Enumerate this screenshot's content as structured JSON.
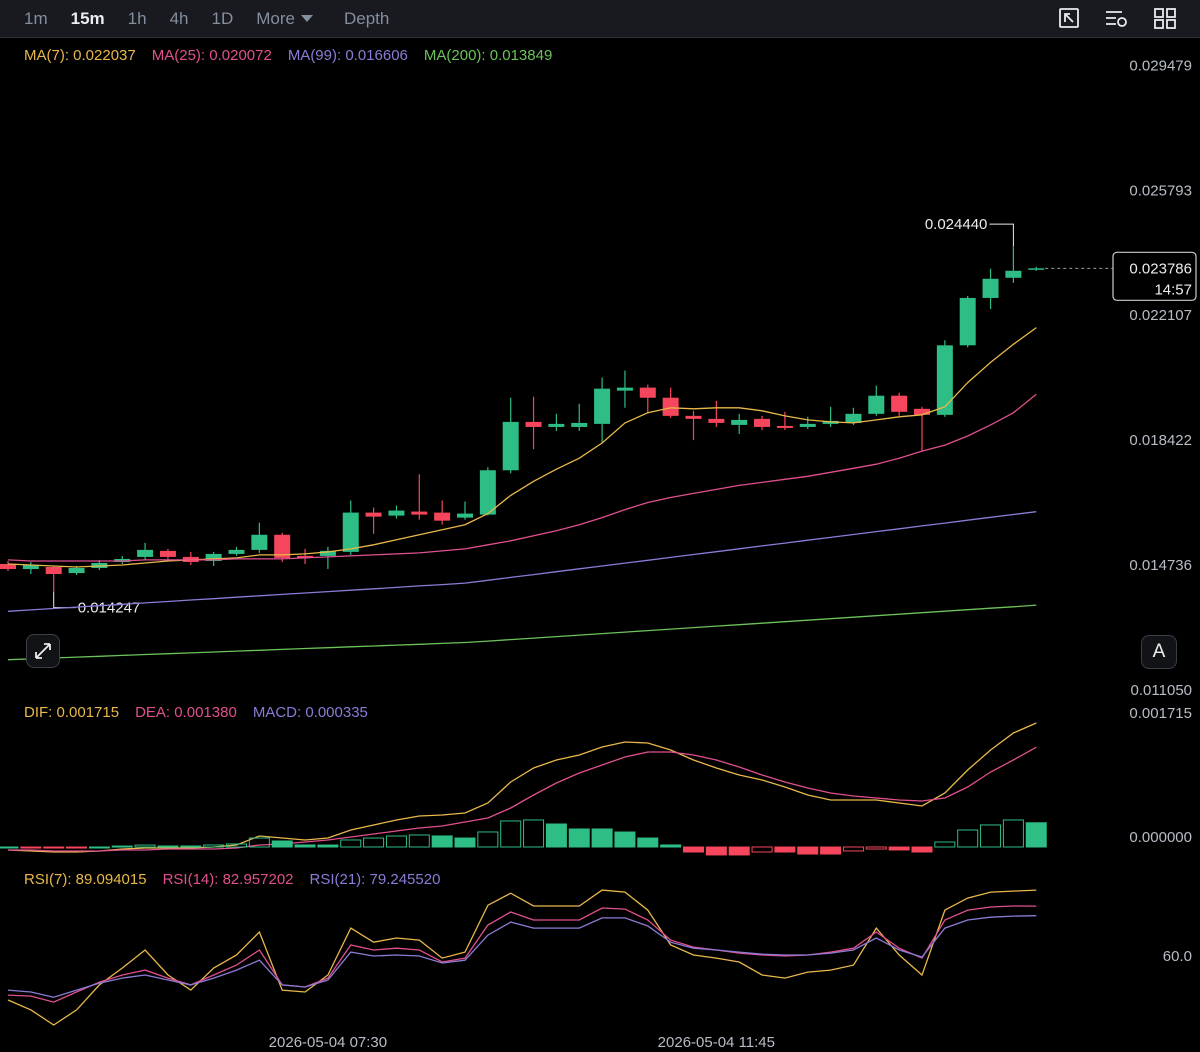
{
  "toolbar": {
    "tabs": [
      {
        "label": "1m"
      },
      {
        "label": "15m",
        "active": true
      },
      {
        "label": "1h"
      },
      {
        "label": "4h"
      },
      {
        "label": "1D"
      },
      {
        "label": "More"
      }
    ],
    "depth": "Depth"
  },
  "auto_button": "A",
  "chart_data": [
    {
      "type": "candlestick",
      "categories": [
        null,
        null,
        null,
        null,
        null,
        null,
        null,
        null,
        null,
        null,
        null,
        null,
        null,
        null,
        "2026-05-04 07:30",
        null,
        null,
        null,
        null,
        null,
        null,
        null,
        null,
        null,
        null,
        null,
        null,
        null,
        null,
        null,
        null,
        "2026-05-04 11:45",
        null,
        null,
        null,
        null,
        null,
        null,
        null,
        null,
        null,
        null,
        null,
        null,
        null,
        null
      ],
      "open": [
        0.015063,
        0.014914,
        0.014974,
        0.014795,
        0.014944,
        0.015122,
        0.015271,
        0.01545,
        0.015271,
        0.015152,
        0.01536,
        0.015479,
        0.015925,
        0.015301,
        0.015301,
        0.01542,
        0.016579,
        0.01649,
        0.016609,
        0.016579,
        0.016431,
        0.01652,
        0.017828,
        0.019255,
        0.019106,
        0.019106,
        0.019196,
        0.020177,
        0.020266,
        0.019968,
        0.019433,
        0.019344,
        0.019166,
        0.019344,
        0.019136,
        0.019106,
        0.019196,
        0.019225,
        0.019493,
        0.020028,
        0.019641,
        0.019463,
        0.021514,
        0.022912,
        0.023506,
        0.023744
      ],
      "high": [
        0.015152,
        0.015122,
        0.015004,
        0.015004,
        0.015182,
        0.015301,
        0.015687,
        0.015509,
        0.01542,
        0.01542,
        0.015568,
        0.016282,
        0.015985,
        0.015509,
        0.015568,
        0.016936,
        0.016728,
        0.016787,
        0.017709,
        0.016936,
        0.016906,
        0.017917,
        0.019968,
        0.019998,
        0.019493,
        0.01979,
        0.020563,
        0.020771,
        0.020355,
        0.020266,
        0.019582,
        0.019879,
        0.019493,
        0.019433,
        0.019552,
        0.019404,
        0.019701,
        0.019671,
        0.020325,
        0.020117,
        0.019701,
        0.021663,
        0.022971,
        0.023774,
        0.02444,
        0.023833
      ],
      "low": [
        0.014855,
        0.014766,
        0.014247,
        0.014736,
        0.014885,
        0.015063,
        0.015182,
        0.015182,
        0.015033,
        0.015004,
        0.015301,
        0.01539,
        0.015122,
        0.015063,
        0.014914,
        0.015331,
        0.015955,
        0.016401,
        0.016371,
        0.016223,
        0.016371,
        0.01649,
        0.017739,
        0.018452,
        0.018987,
        0.018987,
        0.018631,
        0.019671,
        0.019523,
        0.019374,
        0.01872,
        0.019106,
        0.018898,
        0.019017,
        0.019017,
        0.019047,
        0.019106,
        0.019166,
        0.019433,
        0.019433,
        0.018393,
        0.019404,
        0.021455,
        0.022585,
        0.023358,
        0.023714
      ],
      "close": [
        0.014914,
        0.015033,
        0.014766,
        0.014944,
        0.015093,
        0.015212,
        0.015479,
        0.015271,
        0.015122,
        0.01536,
        0.015479,
        0.015925,
        0.015241,
        0.015241,
        0.01545,
        0.016579,
        0.01646,
        0.016639,
        0.01652,
        0.016341,
        0.01655,
        0.017828,
        0.019255,
        0.019106,
        0.019196,
        0.019225,
        0.020236,
        0.020266,
        0.019968,
        0.019433,
        0.019344,
        0.019225,
        0.019314,
        0.019106,
        0.019077,
        0.019196,
        0.019285,
        0.019493,
        0.020028,
        0.019552,
        0.019463,
        0.021514,
        0.022912,
        0.023477,
        0.023714,
        0.023786
      ],
      "up_color": "#2ebd85",
      "down_color": "#f6465d",
      "series": [
        {
          "name": "MA(7): 0.022037",
          "color": "#e8b84a",
          "values": [
            0.015063,
            0.015033,
            0.015004,
            0.014974,
            0.015004,
            0.015033,
            0.015093,
            0.015152,
            0.015182,
            0.015212,
            0.015241,
            0.015331,
            0.015331,
            0.01536,
            0.01542,
            0.015509,
            0.015628,
            0.015777,
            0.015925,
            0.016074,
            0.016223,
            0.01655,
            0.017085,
            0.017501,
            0.017858,
            0.018185,
            0.018631,
            0.019225,
            0.019523,
            0.019671,
            0.019641,
            0.019671,
            0.019671,
            0.019582,
            0.019433,
            0.019314,
            0.019255,
            0.019225,
            0.019314,
            0.019404,
            0.019463,
            0.019701,
            0.020414,
            0.021009,
            0.021544,
            0.022037
          ]
        },
        {
          "name": "MA(25): 0.020072",
          "color": "#e0508f",
          "values": [
            0.015182,
            0.015152,
            0.015152,
            0.015152,
            0.015152,
            0.015152,
            0.015182,
            0.015182,
            0.015182,
            0.015182,
            0.015212,
            0.015212,
            0.015212,
            0.015241,
            0.015271,
            0.015301,
            0.015331,
            0.01536,
            0.01539,
            0.01545,
            0.015509,
            0.015628,
            0.015747,
            0.015895,
            0.016044,
            0.016223,
            0.016431,
            0.016668,
            0.016877,
            0.017025,
            0.017144,
            0.017263,
            0.017382,
            0.017471,
            0.01756,
            0.01765,
            0.017768,
            0.017887,
            0.018006,
            0.018185,
            0.018393,
            0.018571,
            0.018839,
            0.019166,
            0.019523,
            0.020072
          ]
        },
        {
          "name": "MA(99): 0.016606",
          "color": "#8c7bd6",
          "values": [
            0.013666,
            0.013708,
            0.013749,
            0.013791,
            0.013832,
            0.013874,
            0.013916,
            0.013957,
            0.013999,
            0.01404,
            0.014082,
            0.014124,
            0.014165,
            0.014207,
            0.014248,
            0.01429,
            0.014332,
            0.014373,
            0.014415,
            0.014456,
            0.014498,
            0.014582,
            0.014667,
            0.014751,
            0.014836,
            0.01492,
            0.015004,
            0.015089,
            0.015173,
            0.015258,
            0.015342,
            0.015426,
            0.015511,
            0.015595,
            0.01568,
            0.015764,
            0.015848,
            0.015933,
            0.016017,
            0.016102,
            0.016186,
            0.01627,
            0.016355,
            0.016439,
            0.016524,
            0.016606
          ]
        },
        {
          "name": "MA(200): 0.013849",
          "color": "#6cc35a",
          "values": [
            0.012239,
            0.012264,
            0.01229,
            0.012315,
            0.01234,
            0.012366,
            0.012391,
            0.012416,
            0.012441,
            0.012467,
            0.012492,
            0.012517,
            0.012543,
            0.012568,
            0.012593,
            0.012619,
            0.012644,
            0.012669,
            0.012694,
            0.01272,
            0.012745,
            0.012789,
            0.012833,
            0.012877,
            0.012921,
            0.012965,
            0.013009,
            0.013053,
            0.013097,
            0.013141,
            0.013185,
            0.013229,
            0.013273,
            0.013317,
            0.013361,
            0.013405,
            0.013449,
            0.013493,
            0.013537,
            0.013581,
            0.013625,
            0.013669,
            0.013713,
            0.013757,
            0.013801,
            0.013849
          ]
        }
      ],
      "ylim": [
        0.01105,
        0.030463
      ],
      "yticks": [
        0.029479,
        0.025793,
        0.022107,
        0.018422,
        0.014736,
        {
          "value": 0.01105,
          "label": "0.011050"
        }
      ],
      "high_label": {
        "value": 0.02444,
        "label": "0.024440"
      },
      "low_label": 0.014247,
      "last_price": 0.023786,
      "countdown": "14:57"
    },
    {
      "type": "macd",
      "up_color": "#2ebd85",
      "down_color": "#f6465d",
      "series": [
        {
          "name": "DIF: 0.001715",
          "color": "#e8b84a",
          "values": [
            -4.1e-05,
            -5.5e-05,
            -6.9e-05,
            -6.9e-05,
            -5.5e-05,
            -2.8e-05,
            -1.4e-05,
            -1.4e-05,
            -1.4e-05,
            0,
            2.8e-05,
            0.000152,
            0.000124,
            9.7e-05,
            0.000124,
            0.000235,
            0.000304,
            0.000373,
            0.000429,
            0.000443,
            0.00047,
            0.000609,
            0.000899,
            0.001093,
            0.001203,
            0.001272,
            0.001383,
            0.001452,
            0.001438,
            0.001342,
            0.001203,
            0.001093,
            0.000996,
            0.000927,
            0.00083,
            0.000719,
            0.00065,
            0.00065,
            0.00065,
            0.000609,
            0.000567,
            0.000747,
            0.001065,
            0.001342,
            0.001577,
            0.001715
          ]
        },
        {
          "name": "DEA: 0.001380",
          "color": "#e0508f",
          "values": [
            -4.1e-05,
            -4.1e-05,
            -5.5e-05,
            -5.5e-05,
            -5.5e-05,
            -4.1e-05,
            -4.1e-05,
            -2.8e-05,
            -2.8e-05,
            -2.8e-05,
            -1.4e-05,
            2.8e-05,
            4.1e-05,
            6.9e-05,
            9.7e-05,
            0.000138,
            0.00018,
            0.000221,
            0.000263,
            0.00029,
            0.000346,
            0.000401,
            0.000539,
            0.000719,
            0.000885,
            0.001023,
            0.001134,
            0.001245,
            0.001314,
            0.001314,
            0.001272,
            0.001203,
            0.001106,
            0.000996,
            0.000899,
            0.000816,
            0.000747,
            0.000705,
            0.000678,
            0.00065,
            0.000636,
            0.000678,
            0.00083,
            0.001037,
            0.001203,
            0.00138
          ]
        },
        {
          "name": "MACD: 0.000335",
          "color": "#8c7bd6",
          "type": "bar",
          "values": [
            0,
            -1.4e-05,
            -1.4e-05,
            -1.4e-05,
            0,
            1.3e-05,
            2.7e-05,
            1.4e-05,
            1.4e-05,
            2.8e-05,
            4.2e-05,
            0.000124,
            8.3e-05,
            2.8e-05,
            2.7e-05,
            9.7e-05,
            0.000124,
            0.000152,
            0.000166,
            0.000153,
            0.000124,
            0.000208,
            0.00036,
            0.000374,
            0.000318,
            0.000249,
            0.000249,
            0.000207,
            0.000124,
            2.8e-05,
            -6.9e-05,
            -0.00011,
            -0.00011,
            -6.9e-05,
            -6.9e-05,
            -9.7e-05,
            -9.7e-05,
            -5.5e-05,
            -2.8e-05,
            -4.1e-05,
            -6.9e-05,
            6.9e-05,
            0.000235,
            0.000305,
            0.000374,
            0.000335
          ]
        }
      ],
      "ylim": [
        -0.000249,
        0.001964
      ],
      "yticks": [
        0.001715,
        {
          "value": 0,
          "label": "0.000000"
        }
      ]
    },
    {
      "type": "line",
      "series": [
        {
          "name": "RSI(7): 89.094015",
          "color": "#e8b84a",
          "values": [
            46.9,
            43.1,
            37.3,
            43.1,
            52.7,
            59.2,
            66.1,
            56.5,
            50.7,
            59.2,
            64.2,
            73.0,
            50.7,
            50.0,
            56.5,
            74.5,
            69.1,
            70.7,
            69.9,
            63.0,
            65.3,
            83.3,
            87.9,
            83.0,
            83.0,
            83.0,
            89.1,
            88.3,
            81.4,
            68.0,
            64.2,
            63.0,
            61.5,
            56.5,
            55.3,
            57.6,
            58.4,
            60.3,
            74.5,
            64.2,
            56.5,
            81.4,
            86.0,
            88.3,
            88.7,
            89.094015
          ]
        },
        {
          "name": "RSI(14): 82.957202",
          "color": "#e0508f",
          "values": [
            48.8,
            48.4,
            46.1,
            50.0,
            53.8,
            56.5,
            58.4,
            55.3,
            52.7,
            56.5,
            60.3,
            66.1,
            52.7,
            51.9,
            55.3,
            68.0,
            66.1,
            66.8,
            66.1,
            61.5,
            63.0,
            75.7,
            80.7,
            77.6,
            77.6,
            77.6,
            82.2,
            81.8,
            77.6,
            69.9,
            67.2,
            66.1,
            64.9,
            64.2,
            63.8,
            64.2,
            65.3,
            66.8,
            73.0,
            66.8,
            63.0,
            77.6,
            81.4,
            82.6,
            83.0,
            82.957202
          ]
        },
        {
          "name": "RSI(21): 79.245520",
          "color": "#8c7bd6",
          "values": [
            50.7,
            50.0,
            48.0,
            50.7,
            53.4,
            55.3,
            56.5,
            54.6,
            52.7,
            55.3,
            58.4,
            62.2,
            52.7,
            51.9,
            54.6,
            65.3,
            63.8,
            64.2,
            63.8,
            61.1,
            62.2,
            71.8,
            76.8,
            74.5,
            74.5,
            74.5,
            78.4,
            78.4,
            75.3,
            69.1,
            66.8,
            66.1,
            65.3,
            64.5,
            64.2,
            64.2,
            64.9,
            66.1,
            70.7,
            66.1,
            63.4,
            74.5,
            77.6,
            78.7,
            79.1,
            79.24552
          ]
        }
      ],
      "ylim": [
        35.4,
        96.8
      ],
      "yticks": [
        {
          "value": 60,
          "label": "60.0"
        }
      ]
    }
  ]
}
